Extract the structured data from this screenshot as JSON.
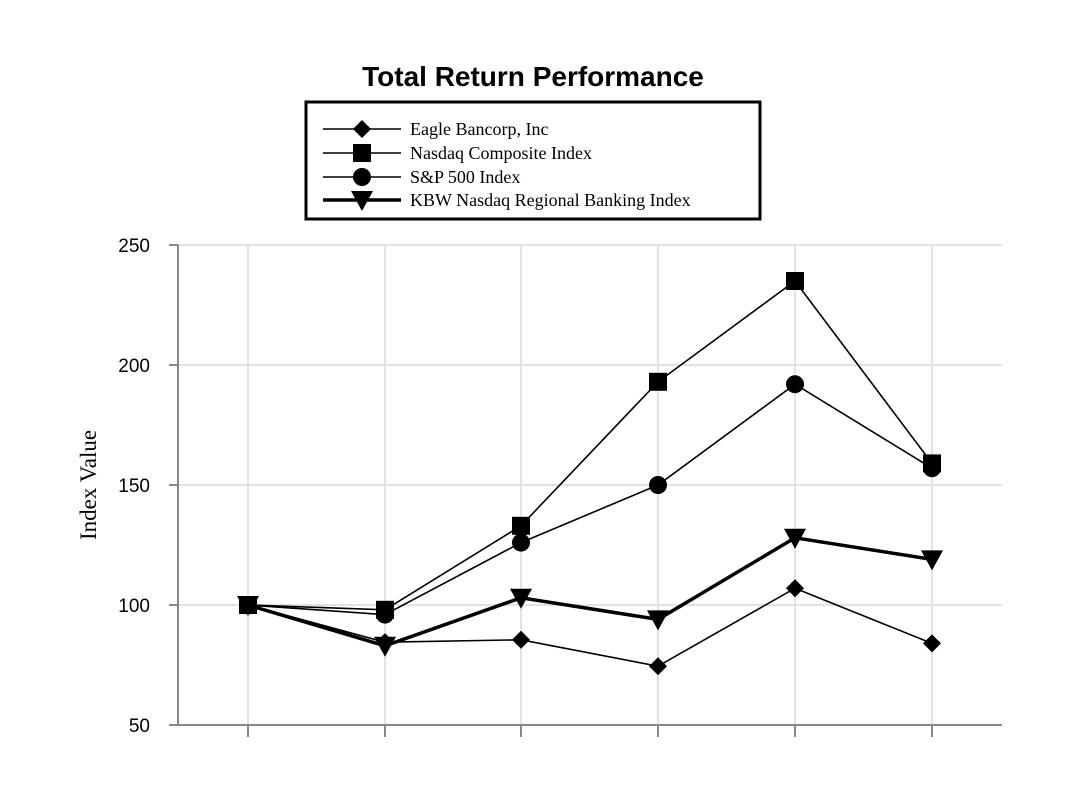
{
  "chart_data": {
    "type": "line",
    "title": "Total Return Performance",
    "xlabel": "",
    "ylabel": "Index Value",
    "x": [
      1,
      2,
      3,
      4,
      5,
      6
    ],
    "ylim": [
      50,
      250
    ],
    "yticks": [
      50,
      100,
      150,
      200,
      250
    ],
    "grid": true,
    "legend_position": "top-center",
    "series": [
      {
        "name": "Eagle Bancorp, Inc",
        "marker": "diamond",
        "line": "thin",
        "values": [
          100,
          84.5,
          85.5,
          74.5,
          107,
          84
        ]
      },
      {
        "name": "Nasdaq Composite Index",
        "marker": "square",
        "line": "thin",
        "values": [
          100,
          98,
          133,
          193,
          235,
          159
        ]
      },
      {
        "name": "S&P 500 Index",
        "marker": "circle",
        "line": "thin",
        "values": [
          100,
          96,
          126,
          150,
          192,
          157
        ]
      },
      {
        "name": "KBW Nasdaq Regional Banking Index",
        "marker": "triangle-down",
        "line": "thick",
        "values": [
          100,
          83,
          103,
          94,
          128,
          119
        ]
      }
    ]
  }
}
